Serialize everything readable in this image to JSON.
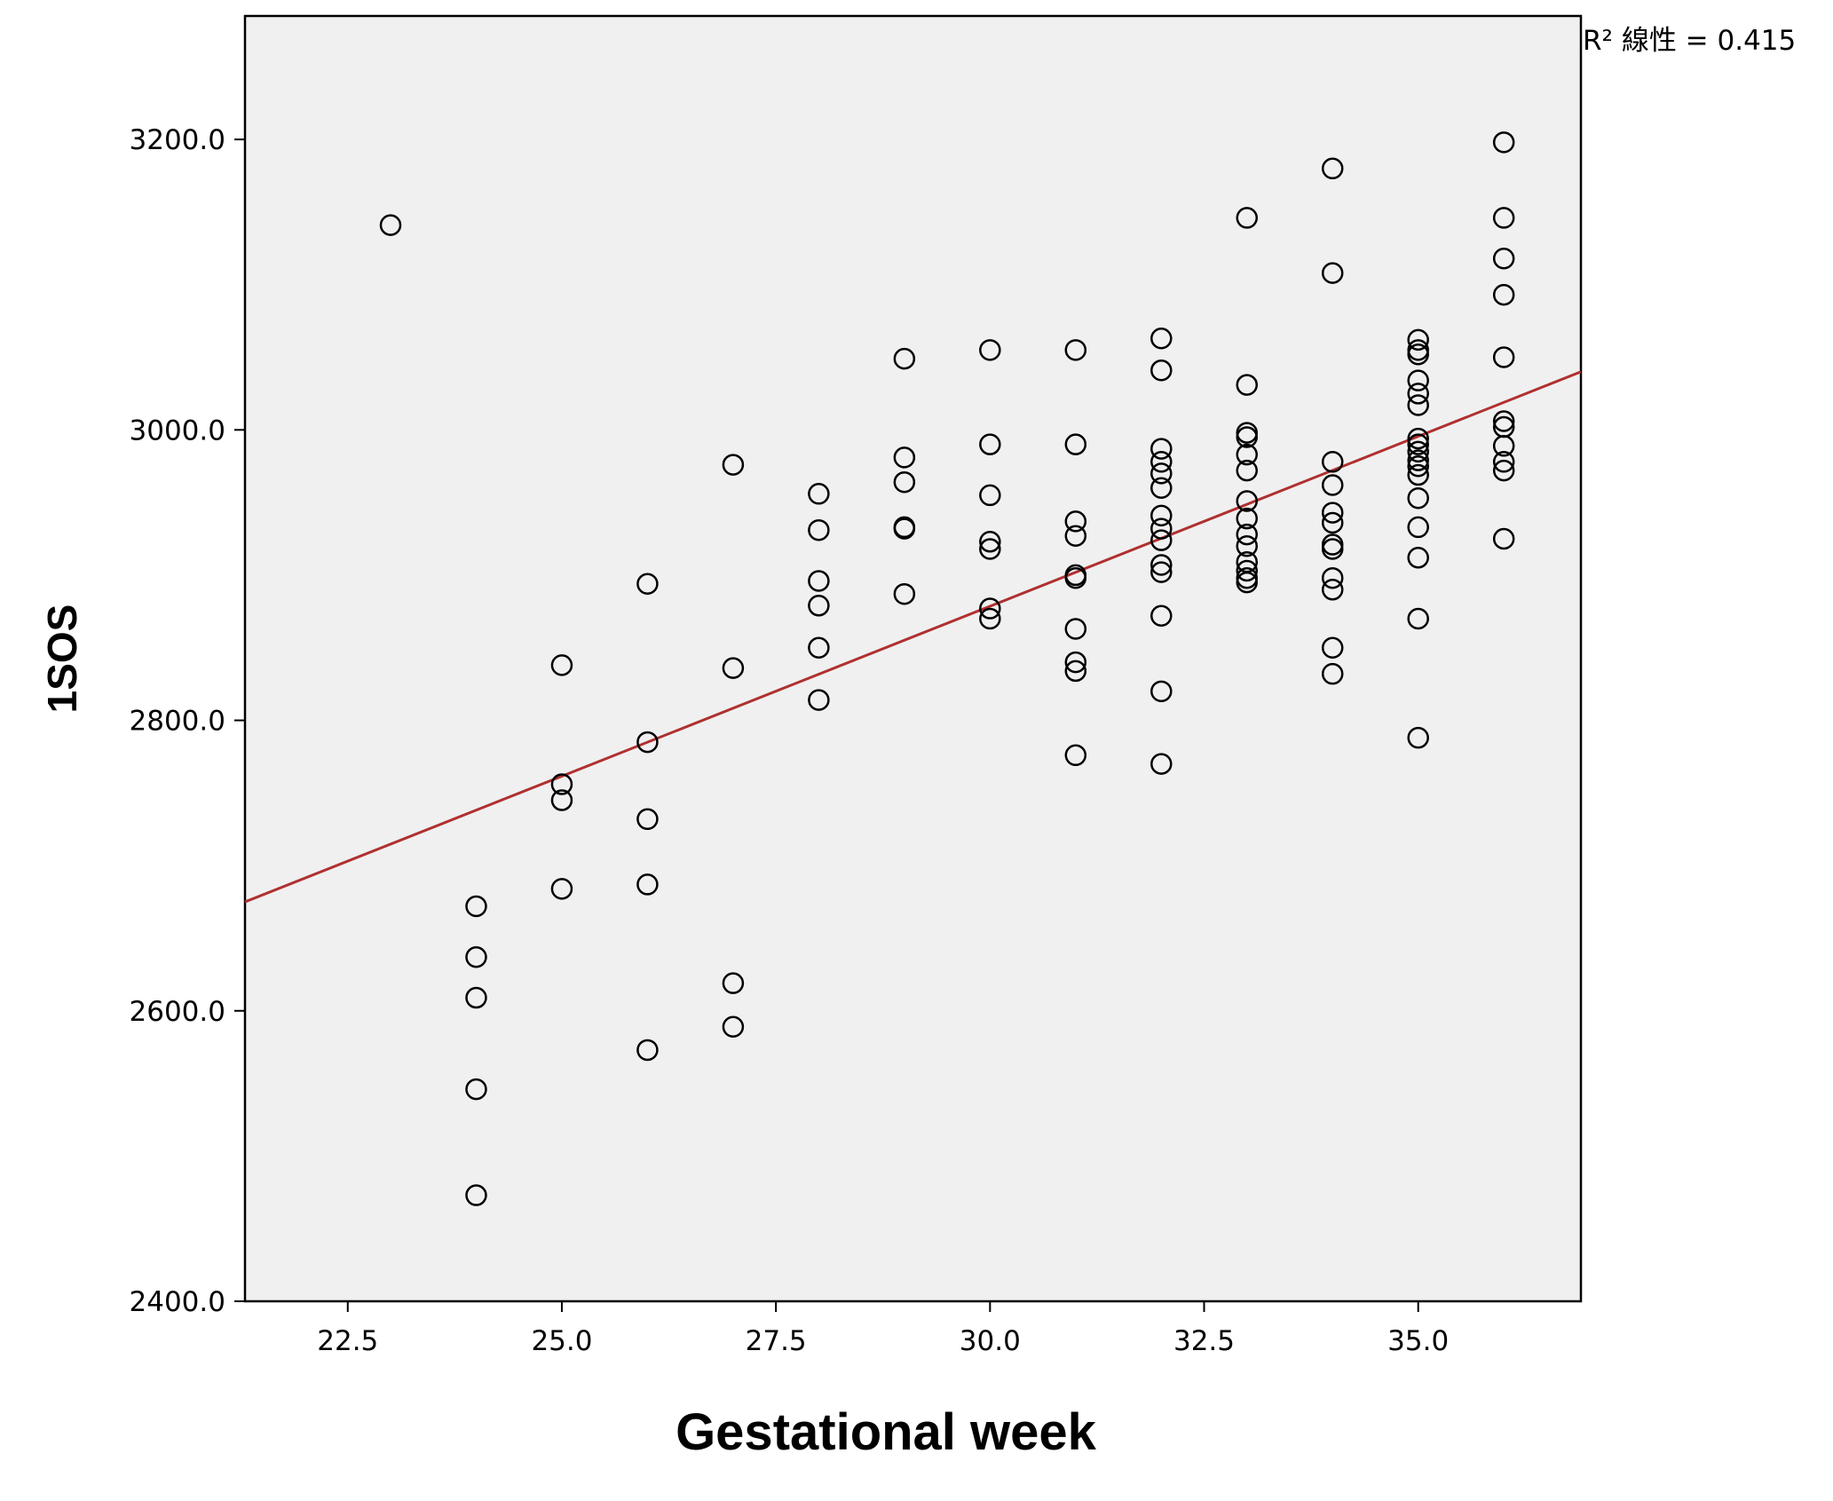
{
  "chart_data": {
    "type": "scatter",
    "title": "",
    "xlabel": "Gestational week",
    "ylabel": "1SOS",
    "xlim": [
      21.3,
      36.9
    ],
    "ylim": [
      2400,
      3285
    ],
    "x_ticks": [
      "22.5",
      "25.0",
      "27.5",
      "30.0",
      "32.5",
      "35.0"
    ],
    "x_tick_values": [
      22.5,
      25.0,
      27.5,
      30.0,
      32.5,
      35.0
    ],
    "y_ticks": [
      "2400.0",
      "2600.0",
      "2800.0",
      "3000.0",
      "3200.0"
    ],
    "y_tick_values": [
      2400,
      2600,
      2800,
      3000,
      3200
    ],
    "annotation": "R² 線性 = 0.415",
    "grid": false,
    "legend": "none",
    "colors": {
      "background": "#f0f0f0",
      "fit_line": "#b03030",
      "points": "#000000"
    },
    "fit_line": {
      "x": [
        21.3,
        36.9
      ],
      "y": [
        2675,
        3040
      ]
    },
    "points": [
      {
        "x": 23,
        "y": 3141
      },
      {
        "x": 24,
        "y": 2672
      },
      {
        "x": 24,
        "y": 2637
      },
      {
        "x": 24,
        "y": 2609
      },
      {
        "x": 24,
        "y": 2546
      },
      {
        "x": 24,
        "y": 2473
      },
      {
        "x": 25,
        "y": 2838
      },
      {
        "x": 25,
        "y": 2756
      },
      {
        "x": 25,
        "y": 2745
      },
      {
        "x": 25,
        "y": 2684
      },
      {
        "x": 26,
        "y": 2894
      },
      {
        "x": 26,
        "y": 2785
      },
      {
        "x": 26,
        "y": 2732
      },
      {
        "x": 26,
        "y": 2687
      },
      {
        "x": 26,
        "y": 2573
      },
      {
        "x": 27,
        "y": 2976
      },
      {
        "x": 27,
        "y": 2836
      },
      {
        "x": 27,
        "y": 2619
      },
      {
        "x": 27,
        "y": 2589
      },
      {
        "x": 28,
        "y": 2956
      },
      {
        "x": 28,
        "y": 2931
      },
      {
        "x": 28,
        "y": 2896
      },
      {
        "x": 28,
        "y": 2879
      },
      {
        "x": 28,
        "y": 2850
      },
      {
        "x": 28,
        "y": 2814
      },
      {
        "x": 29,
        "y": 3049
      },
      {
        "x": 29,
        "y": 2981
      },
      {
        "x": 29,
        "y": 2964
      },
      {
        "x": 29,
        "y": 2933
      },
      {
        "x": 29,
        "y": 2932
      },
      {
        "x": 29,
        "y": 2887
      },
      {
        "x": 30,
        "y": 3055
      },
      {
        "x": 30,
        "y": 2990
      },
      {
        "x": 30,
        "y": 2955
      },
      {
        "x": 30,
        "y": 2923
      },
      {
        "x": 30,
        "y": 2918
      },
      {
        "x": 30,
        "y": 2877
      },
      {
        "x": 30,
        "y": 2870
      },
      {
        "x": 31,
        "y": 3055
      },
      {
        "x": 31,
        "y": 2990
      },
      {
        "x": 31,
        "y": 2937
      },
      {
        "x": 31,
        "y": 2927
      },
      {
        "x": 31,
        "y": 2900
      },
      {
        "x": 31,
        "y": 2898
      },
      {
        "x": 31,
        "y": 2863
      },
      {
        "x": 31,
        "y": 2840
      },
      {
        "x": 31,
        "y": 2834
      },
      {
        "x": 31,
        "y": 2776
      },
      {
        "x": 32,
        "y": 3063
      },
      {
        "x": 32,
        "y": 3041
      },
      {
        "x": 32,
        "y": 2987
      },
      {
        "x": 32,
        "y": 2978
      },
      {
        "x": 32,
        "y": 2970
      },
      {
        "x": 32,
        "y": 2960
      },
      {
        "x": 32,
        "y": 2941
      },
      {
        "x": 32,
        "y": 2932
      },
      {
        "x": 32,
        "y": 2924
      },
      {
        "x": 32,
        "y": 2907
      },
      {
        "x": 32,
        "y": 2902
      },
      {
        "x": 32,
        "y": 2872
      },
      {
        "x": 32,
        "y": 2820
      },
      {
        "x": 32,
        "y": 2770
      },
      {
        "x": 33,
        "y": 3146
      },
      {
        "x": 33,
        "y": 3031
      },
      {
        "x": 33,
        "y": 2998
      },
      {
        "x": 33,
        "y": 2995
      },
      {
        "x": 33,
        "y": 2983
      },
      {
        "x": 33,
        "y": 2972
      },
      {
        "x": 33,
        "y": 2951
      },
      {
        "x": 33,
        "y": 2939
      },
      {
        "x": 33,
        "y": 2928
      },
      {
        "x": 33,
        "y": 2920
      },
      {
        "x": 33,
        "y": 2909
      },
      {
        "x": 33,
        "y": 2903
      },
      {
        "x": 33,
        "y": 2898
      },
      {
        "x": 33,
        "y": 2895
      },
      {
        "x": 34,
        "y": 3180
      },
      {
        "x": 34,
        "y": 3108
      },
      {
        "x": 34,
        "y": 2978
      },
      {
        "x": 34,
        "y": 2962
      },
      {
        "x": 34,
        "y": 2943
      },
      {
        "x": 34,
        "y": 2936
      },
      {
        "x": 34,
        "y": 2921
      },
      {
        "x": 34,
        "y": 2918
      },
      {
        "x": 34,
        "y": 2898
      },
      {
        "x": 34,
        "y": 2890
      },
      {
        "x": 34,
        "y": 2850
      },
      {
        "x": 34,
        "y": 2832
      },
      {
        "x": 35,
        "y": 3062
      },
      {
        "x": 35,
        "y": 3055
      },
      {
        "x": 35,
        "y": 3052
      },
      {
        "x": 35,
        "y": 3034
      },
      {
        "x": 35,
        "y": 3025
      },
      {
        "x": 35,
        "y": 3017
      },
      {
        "x": 35,
        "y": 2994
      },
      {
        "x": 35,
        "y": 2990
      },
      {
        "x": 35,
        "y": 2985
      },
      {
        "x": 35,
        "y": 2979
      },
      {
        "x": 35,
        "y": 2975
      },
      {
        "x": 35,
        "y": 2969
      },
      {
        "x": 35,
        "y": 2953
      },
      {
        "x": 35,
        "y": 2933
      },
      {
        "x": 35,
        "y": 2912
      },
      {
        "x": 35,
        "y": 2870
      },
      {
        "x": 35,
        "y": 2788
      },
      {
        "x": 36,
        "y": 3198
      },
      {
        "x": 36,
        "y": 3146
      },
      {
        "x": 36,
        "y": 3118
      },
      {
        "x": 36,
        "y": 3093
      },
      {
        "x": 36,
        "y": 3050
      },
      {
        "x": 36,
        "y": 3006
      },
      {
        "x": 36,
        "y": 3002
      },
      {
        "x": 36,
        "y": 2989
      },
      {
        "x": 36,
        "y": 2978
      },
      {
        "x": 36,
        "y": 2972
      },
      {
        "x": 36,
        "y": 2925
      }
    ]
  }
}
